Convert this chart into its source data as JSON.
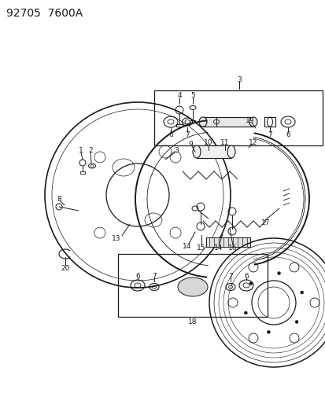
{
  "title": "92705  7600A",
  "bg_color": "#ffffff",
  "line_color": "#1a1a1a",
  "title_fontsize": 10,
  "label_fontsize": 6.5,
  "fig_width": 4.14,
  "fig_height": 5.33,
  "dpi": 100
}
